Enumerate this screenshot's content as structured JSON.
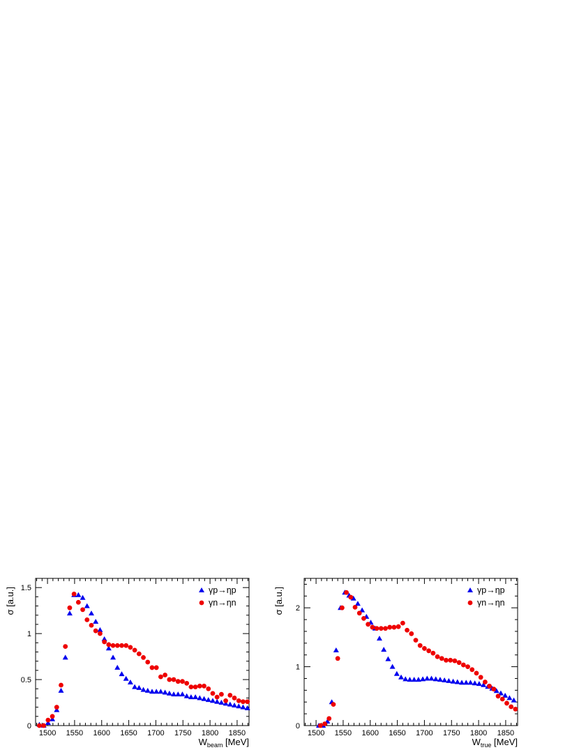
{
  "colors": {
    "proton": "#0000ee",
    "neutron": "#ee0000",
    "axis": "#000000"
  },
  "chart_data": [
    {
      "type": "scatter",
      "xlabel": "W",
      "xlabel_sub": "beam",
      "xlabel_unit": " [MeV]",
      "ylabel": "σ [a.u.]",
      "xlim": [
        1478,
        1872
      ],
      "ylim": [
        0,
        1.6
      ],
      "xticks": [
        1500,
        1550,
        1600,
        1650,
        1700,
        1750,
        1800,
        1850
      ],
      "xtick_labels": [
        "1500",
        "1550",
        "1600",
        "1650",
        "1700",
        "1750",
        "1800",
        "1850"
      ],
      "yticks": [
        0,
        0.5,
        1,
        1.5
      ],
      "ytick_labels": [
        "0",
        "0.5",
        "1",
        "1.5"
      ],
      "legend_position": "top-right",
      "series": [
        {
          "name": "γp→ηp",
          "marker": "triangle",
          "x": [
            1485,
            1493,
            1501,
            1509,
            1517,
            1525,
            1533,
            1541,
            1549,
            1557,
            1565,
            1573,
            1581,
            1589,
            1597,
            1605,
            1613,
            1621,
            1629,
            1637,
            1645,
            1653,
            1661,
            1669,
            1677,
            1685,
            1693,
            1701,
            1709,
            1717,
            1725,
            1733,
            1741,
            1749,
            1757,
            1765,
            1773,
            1781,
            1789,
            1797,
            1805,
            1813,
            1821,
            1829,
            1837,
            1845,
            1853,
            1861,
            1869
          ],
          "y": [
            0.01,
            0.0,
            0.03,
            0.07,
            0.17,
            0.38,
            0.74,
            1.22,
            1.42,
            1.42,
            1.39,
            1.3,
            1.22,
            1.13,
            1.04,
            0.94,
            0.84,
            0.74,
            0.63,
            0.56,
            0.51,
            0.47,
            0.42,
            0.41,
            0.39,
            0.38,
            0.37,
            0.37,
            0.37,
            0.36,
            0.35,
            0.34,
            0.34,
            0.34,
            0.32,
            0.31,
            0.31,
            0.3,
            0.29,
            0.28,
            0.27,
            0.26,
            0.25,
            0.24,
            0.23,
            0.22,
            0.21,
            0.2,
            0.19
          ]
        },
        {
          "name": "γn→ηn",
          "marker": "circle",
          "x": [
            1485,
            1493,
            1501,
            1509,
            1517,
            1525,
            1533,
            1541,
            1549,
            1557,
            1565,
            1573,
            1581,
            1589,
            1597,
            1605,
            1613,
            1621,
            1629,
            1637,
            1645,
            1653,
            1661,
            1669,
            1677,
            1685,
            1693,
            1701,
            1709,
            1717,
            1725,
            1733,
            1741,
            1749,
            1757,
            1765,
            1773,
            1781,
            1789,
            1797,
            1805,
            1813,
            1821,
            1829,
            1837,
            1845,
            1853,
            1861,
            1869
          ],
          "y": [
            0.0,
            0.0,
            0.06,
            0.1,
            0.2,
            0.44,
            0.86,
            1.28,
            1.43,
            1.34,
            1.26,
            1.15,
            1.09,
            1.03,
            1.0,
            0.91,
            0.88,
            0.87,
            0.87,
            0.87,
            0.87,
            0.85,
            0.82,
            0.78,
            0.74,
            0.69,
            0.63,
            0.63,
            0.53,
            0.55,
            0.5,
            0.5,
            0.48,
            0.48,
            0.46,
            0.42,
            0.42,
            0.43,
            0.43,
            0.4,
            0.35,
            0.31,
            0.34,
            0.27,
            0.33,
            0.3,
            0.27,
            0.26,
            0.26
          ]
        }
      ]
    },
    {
      "type": "scatter",
      "xlabel": "W",
      "xlabel_sub": "true",
      "xlabel_unit": " [MeV]",
      "ylabel": "σ [a.u.]",
      "xlim": [
        1478,
        1872
      ],
      "ylim": [
        0,
        2.5
      ],
      "xticks": [
        1500,
        1550,
        1600,
        1650,
        1700,
        1750,
        1800,
        1850
      ],
      "xtick_labels": [
        "1500",
        "1550",
        "1600",
        "1650",
        "1700",
        "1750",
        "1800",
        "1850"
      ],
      "yticks": [
        0,
        1,
        2
      ],
      "ytick_labels": [
        "0",
        "1",
        "2"
      ],
      "legend_position": "top-right",
      "series": [
        {
          "name": "γp→ηp",
          "marker": "triangle",
          "x": [
            1505,
            1513,
            1521,
            1529,
            1537,
            1545,
            1553,
            1561,
            1569,
            1577,
            1585,
            1593,
            1601,
            1609,
            1617,
            1625,
            1633,
            1641,
            1649,
            1657,
            1665,
            1673,
            1681,
            1689,
            1697,
            1705,
            1713,
            1721,
            1729,
            1737,
            1745,
            1753,
            1761,
            1769,
            1777,
            1785,
            1793,
            1801,
            1809,
            1817,
            1825,
            1833,
            1841,
            1849,
            1857,
            1865
          ],
          "y": [
            0.0,
            0.0,
            0.07,
            0.4,
            1.28,
            2.0,
            2.26,
            2.21,
            2.16,
            2.07,
            1.96,
            1.85,
            1.75,
            1.65,
            1.48,
            1.29,
            1.13,
            1.0,
            0.88,
            0.82,
            0.79,
            0.78,
            0.78,
            0.78,
            0.79,
            0.8,
            0.8,
            0.79,
            0.78,
            0.77,
            0.76,
            0.75,
            0.74,
            0.73,
            0.73,
            0.73,
            0.72,
            0.71,
            0.69,
            0.66,
            0.63,
            0.59,
            0.55,
            0.51,
            0.47,
            0.43
          ]
        },
        {
          "name": "γn→ηn",
          "marker": "circle",
          "x": [
            1508,
            1516,
            1524,
            1532,
            1540,
            1548,
            1556,
            1564,
            1572,
            1580,
            1588,
            1596,
            1604,
            1612,
            1620,
            1628,
            1636,
            1644,
            1652,
            1660,
            1668,
            1676,
            1684,
            1692,
            1700,
            1708,
            1716,
            1724,
            1732,
            1740,
            1748,
            1756,
            1764,
            1772,
            1780,
            1788,
            1796,
            1804,
            1812,
            1820,
            1828,
            1836,
            1844,
            1852,
            1860,
            1868
          ],
          "y": [
            0.0,
            0.03,
            0.12,
            0.36,
            1.14,
            2.0,
            2.26,
            2.18,
            2.01,
            1.91,
            1.82,
            1.72,
            1.67,
            1.65,
            1.65,
            1.65,
            1.67,
            1.67,
            1.68,
            1.74,
            1.62,
            1.56,
            1.45,
            1.36,
            1.31,
            1.27,
            1.23,
            1.17,
            1.14,
            1.11,
            1.11,
            1.1,
            1.07,
            1.03,
            1.0,
            0.95,
            0.89,
            0.82,
            0.74,
            0.67,
            0.62,
            0.5,
            0.45,
            0.38,
            0.32,
            0.28
          ]
        }
      ]
    }
  ]
}
